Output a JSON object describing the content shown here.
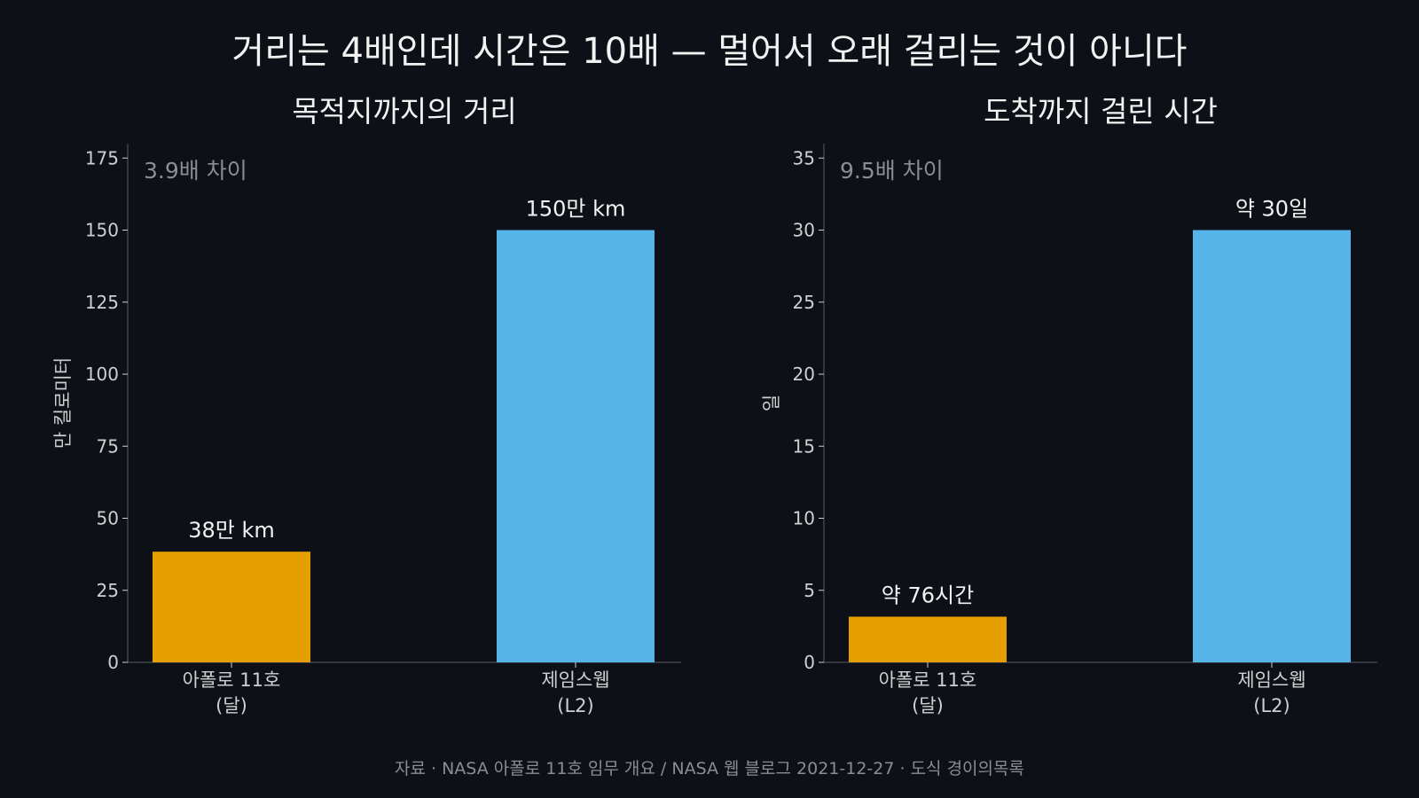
{
  "title": "거리는 4배인데 시간은 10배 — 멀어서 오래 걸리는 것이 아니다",
  "source": "자료 · NASA 아폴로 11호 임무 개요 / NASA 웹 블로그 2021-12-27 · 도식 경이의목록",
  "colors": {
    "apollo": "#e69f00",
    "webb": "#56b4e9",
    "background": "#0d1017",
    "axis": "#cfcfcf",
    "annotation": "#8a8d94"
  },
  "chart_data": [
    {
      "type": "bar",
      "title": "목적지까지의 거리",
      "ylabel": "만 킬로미터",
      "ylim": [
        0,
        180
      ],
      "yticks": [
        0,
        25,
        50,
        75,
        100,
        125,
        150,
        175
      ],
      "categories": [
        [
          "아폴로 11호",
          "(달)"
        ],
        [
          "제임스웹",
          "(L2)"
        ]
      ],
      "values": [
        38.4,
        150
      ],
      "value_labels": [
        "38만 km",
        "150만 km"
      ],
      "annotation": "3.9배 차이",
      "grid": false
    },
    {
      "type": "bar",
      "title": "도착까지 걸린 시간",
      "ylabel": "일",
      "ylim": [
        0,
        36
      ],
      "yticks": [
        0,
        5,
        10,
        15,
        20,
        25,
        30,
        35
      ],
      "categories": [
        [
          "아폴로 11호",
          "(달)"
        ],
        [
          "제임스웹",
          "(L2)"
        ]
      ],
      "values": [
        3.17,
        30
      ],
      "value_labels": [
        "약 76시간",
        "약 30일"
      ],
      "annotation": "9.5배 차이",
      "grid": false
    }
  ]
}
